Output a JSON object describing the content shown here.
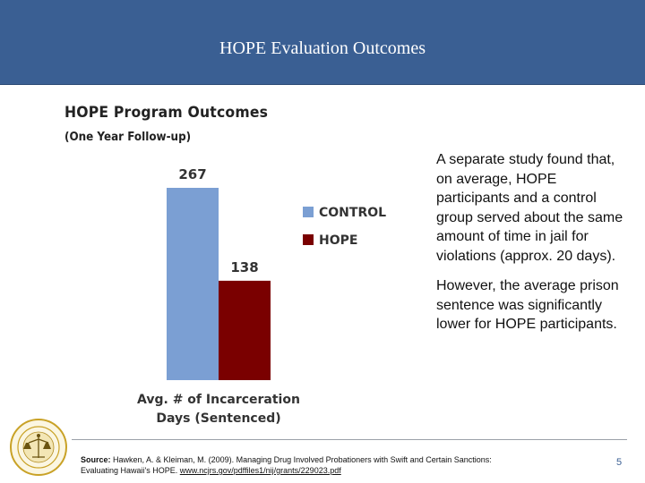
{
  "header": {
    "title": "HOPE Evaluation Outcomes"
  },
  "chart_data": {
    "type": "bar",
    "title": "HOPE Program Outcomes",
    "subtitle": "(One Year Follow-up)",
    "categories": [
      "CONTROL",
      "HOPE"
    ],
    "values": [
      267,
      138
    ],
    "value_labels": [
      "267",
      "138"
    ],
    "colors": [
      "#7b9fd3",
      "#7a0000"
    ],
    "xlabel_lines": [
      "Avg. # of Incarceration",
      "Days (Sentenced)"
    ],
    "ylabel": "",
    "ylim": [
      0,
      267
    ],
    "grid": false,
    "legend": {
      "placement": "right",
      "entries": [
        {
          "label": "CONTROL",
          "color": "#7b9fd3"
        },
        {
          "label": "HOPE",
          "color": "#7a0000"
        }
      ]
    }
  },
  "side": {
    "paragraph1": "A separate study found that, on average, HOPE participants and a control group served about the same amount of time in jail for violations (approx. 20 days).",
    "paragraph2": "However, the average prison sentence was significantly lower for HOPE participants."
  },
  "footer": {
    "source_label": "Source:",
    "source_text": "Hawken, A. & Kleiman, M. (2009). Managing Drug Involved Probationers with Swift and Certain Sanctions: Evaluating Hawaii's HOPE.",
    "source_url": "www.ncjrs.gov/pdffiles1/nij/grants/229023.pdf",
    "page_number": "5"
  },
  "seal": {
    "icon": "court-seal-icon",
    "color": "#c9a227"
  }
}
